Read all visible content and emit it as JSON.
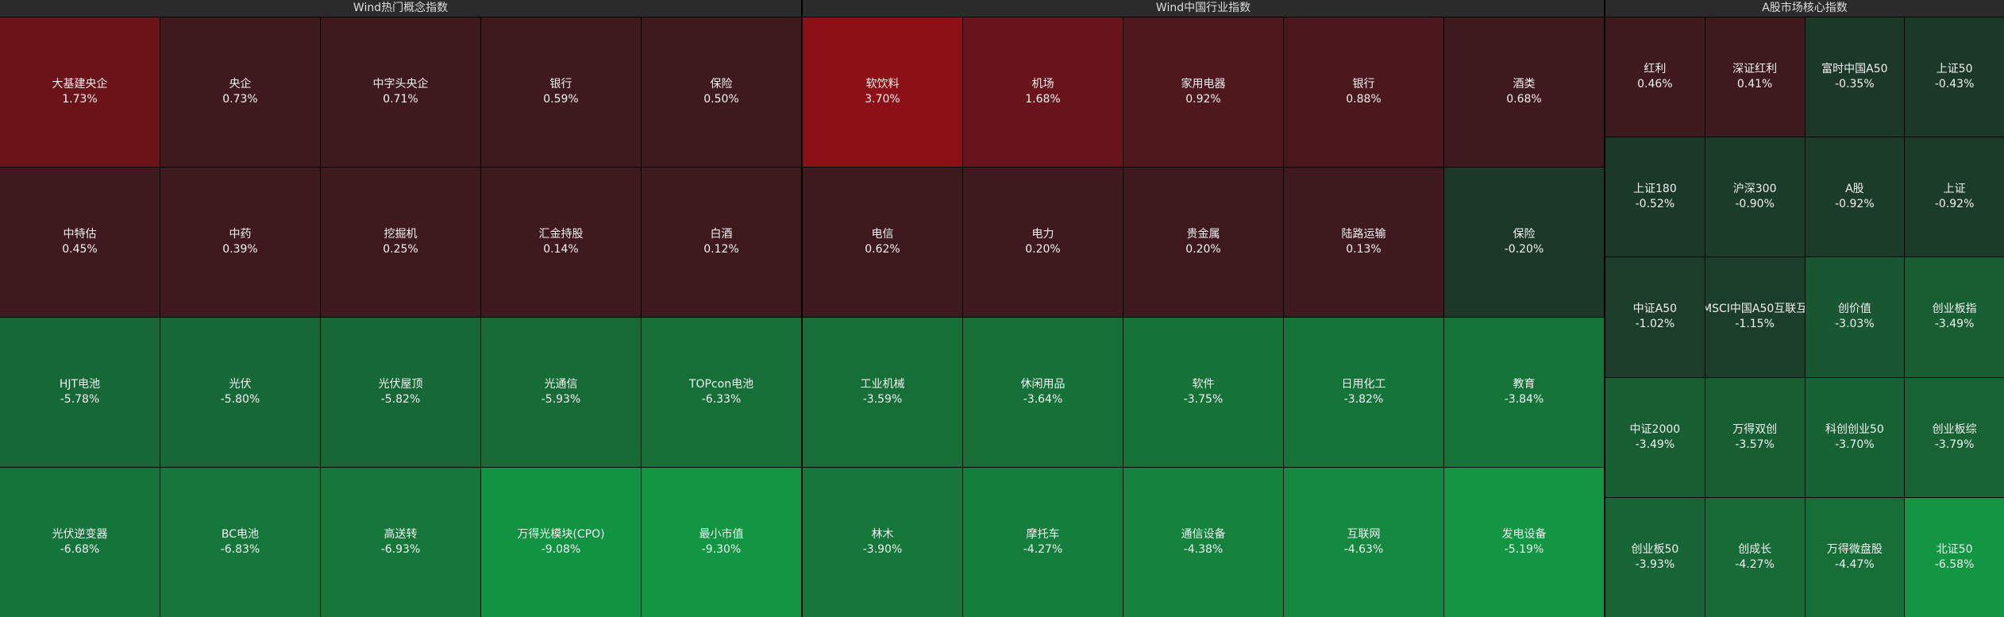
{
  "panels": [
    {
      "title": "Wind热门概念指数",
      "cells": [
        {
          "name": "大基建央企",
          "change": "1.73%"
        },
        {
          "name": "央企",
          "change": "0.73%"
        },
        {
          "name": "中字头央企",
          "change": "0.71%"
        },
        {
          "name": "银行",
          "change": "0.59%"
        },
        {
          "name": "保险",
          "change": "0.50%"
        },
        {
          "name": "中特估",
          "change": "0.45%"
        },
        {
          "name": "中药",
          "change": "0.39%"
        },
        {
          "name": "挖掘机",
          "change": "0.25%"
        },
        {
          "name": "汇金持股",
          "change": "0.14%"
        },
        {
          "name": "白酒",
          "change": "0.12%"
        },
        {
          "name": "HJT电池",
          "change": "-5.78%"
        },
        {
          "name": "光伏",
          "change": "-5.80%"
        },
        {
          "name": "光伏屋顶",
          "change": "-5.82%"
        },
        {
          "name": "光通信",
          "change": "-5.93%"
        },
        {
          "name": "TOPcon电池",
          "change": "-6.33%"
        },
        {
          "name": "光伏逆变器",
          "change": "-6.68%"
        },
        {
          "name": "BC电池",
          "change": "-6.83%"
        },
        {
          "name": "高送转",
          "change": "-6.93%"
        },
        {
          "name": "万得光模块(CPO)",
          "change": "-9.08%"
        },
        {
          "name": "最小市值",
          "change": "-9.30%"
        }
      ]
    },
    {
      "title": "Wind中国行业指数",
      "cells": [
        {
          "name": "软饮料",
          "change": "3.70%"
        },
        {
          "name": "机场",
          "change": "1.68%"
        },
        {
          "name": "家用电器",
          "change": "0.92%"
        },
        {
          "name": "银行",
          "change": "0.88%"
        },
        {
          "name": "酒类",
          "change": "0.68%"
        },
        {
          "name": "电信",
          "change": "0.62%"
        },
        {
          "name": "电力",
          "change": "0.20%"
        },
        {
          "name": "贵金属",
          "change": "0.20%"
        },
        {
          "name": "陆路运输",
          "change": "0.13%"
        },
        {
          "name": "保险",
          "change": "-0.20%"
        },
        {
          "name": "工业机械",
          "change": "-3.59%"
        },
        {
          "name": "休闲用品",
          "change": "-3.64%"
        },
        {
          "name": "软件",
          "change": "-3.75%"
        },
        {
          "name": "日用化工",
          "change": "-3.82%"
        },
        {
          "name": "教育",
          "change": "-3.84%"
        },
        {
          "name": "林木",
          "change": "-3.90%"
        },
        {
          "name": "摩托车",
          "change": "-4.27%"
        },
        {
          "name": "通信设备",
          "change": "-4.38%"
        },
        {
          "name": "互联网",
          "change": "-4.63%"
        },
        {
          "name": "发电设备",
          "change": "-5.19%"
        }
      ]
    },
    {
      "title": "A股市场核心指数",
      "cells": [
        {
          "name": "红利",
          "change": "0.46%"
        },
        {
          "name": "深证红利",
          "change": "0.41%"
        },
        {
          "name": "富时中国A50",
          "change": "-0.35%"
        },
        {
          "name": "上证50",
          "change": "-0.43%"
        },
        {
          "name": "上证180",
          "change": "-0.52%"
        },
        {
          "name": "沪深300",
          "change": "-0.90%"
        },
        {
          "name": "A股",
          "change": "-0.92%"
        },
        {
          "name": "上证",
          "change": "-0.92%"
        },
        {
          "name": "中证A50",
          "change": "-1.02%"
        },
        {
          "name": "MSCI中国A50互联互",
          "change": "-1.15%"
        },
        {
          "name": "创价值",
          "change": "-3.03%"
        },
        {
          "name": "创业板指",
          "change": "-3.49%"
        },
        {
          "name": "中证2000",
          "change": "-3.49%"
        },
        {
          "name": "万得双创",
          "change": "-3.57%"
        },
        {
          "name": "科创创业50",
          "change": "-3.70%"
        },
        {
          "name": "创业板综",
          "change": "-3.79%"
        },
        {
          "name": "创业板50",
          "change": "-3.93%"
        },
        {
          "name": "创成长",
          "change": "-4.27%"
        },
        {
          "name": "万得微盘股",
          "change": "-4.47%"
        },
        {
          "name": "北证50",
          "change": "-6.58%"
        }
      ]
    }
  ]
}
